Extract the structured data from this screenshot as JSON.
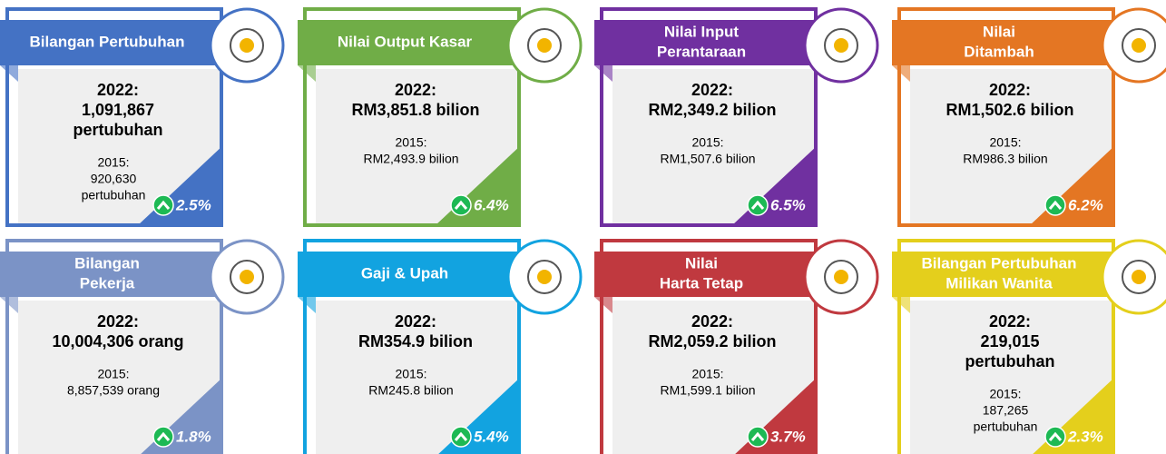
{
  "cards": [
    {
      "color": "#4472c4",
      "title": [
        "Bilangan Pertubuhan"
      ],
      "current": [
        "2022:",
        "1,091,867",
        "pertubuhan"
      ],
      "previous": [
        "2015:",
        "920,630",
        "pertubuhan"
      ],
      "growth": "2.5%"
    },
    {
      "color": "#70ad47",
      "title": [
        "Nilai Output Kasar"
      ],
      "current": [
        "2022:",
        "RM3,851.8 bilion"
      ],
      "previous": [
        "2015:",
        "RM2,493.9 bilion"
      ],
      "growth": "6.4%"
    },
    {
      "color": "#7030a0",
      "title": [
        "Nilai Input",
        "Perantaraan"
      ],
      "current": [
        "2022:",
        "RM2,349.2 bilion"
      ],
      "previous": [
        "2015:",
        "RM1,507.6 bilion"
      ],
      "growth": "6.5%"
    },
    {
      "color": "#e47623",
      "title": [
        "Nilai",
        "Ditambah"
      ],
      "current": [
        "2022:",
        "RM1,502.6 bilion"
      ],
      "previous": [
        "2015:",
        "RM986.3 bilion"
      ],
      "growth": "6.2%"
    },
    {
      "color": "#7b93c6",
      "title": [
        "Bilangan",
        "Pekerja"
      ],
      "current": [
        "2022:",
        "10,004,306 orang"
      ],
      "previous": [
        "2015:",
        "8,857,539 orang"
      ],
      "growth": "1.8%"
    },
    {
      "color": "#12a3e0",
      "title": [
        "Gaji & Upah"
      ],
      "current": [
        "2022:",
        "RM354.9 bilion"
      ],
      "previous": [
        "2015:",
        "RM245.8 bilion"
      ],
      "growth": "5.4%"
    },
    {
      "color": "#c0393f",
      "title": [
        "Nilai",
        "Harta Tetap"
      ],
      "current": [
        "2022:",
        "RM2,059.2 bilion"
      ],
      "previous": [
        "2015:",
        "RM1,599.1 bilion"
      ],
      "growth": "3.7%"
    },
    {
      "color": "#e4cf1c",
      "title": [
        "Bilangan Pertubuhan",
        "Milikan Wanita"
      ],
      "current": [
        "2022:",
        "219,015",
        "pertubuhan"
      ],
      "previous": [
        "2015:",
        "187,265",
        "pertubuhan"
      ],
      "growth": "2.3%"
    }
  ]
}
